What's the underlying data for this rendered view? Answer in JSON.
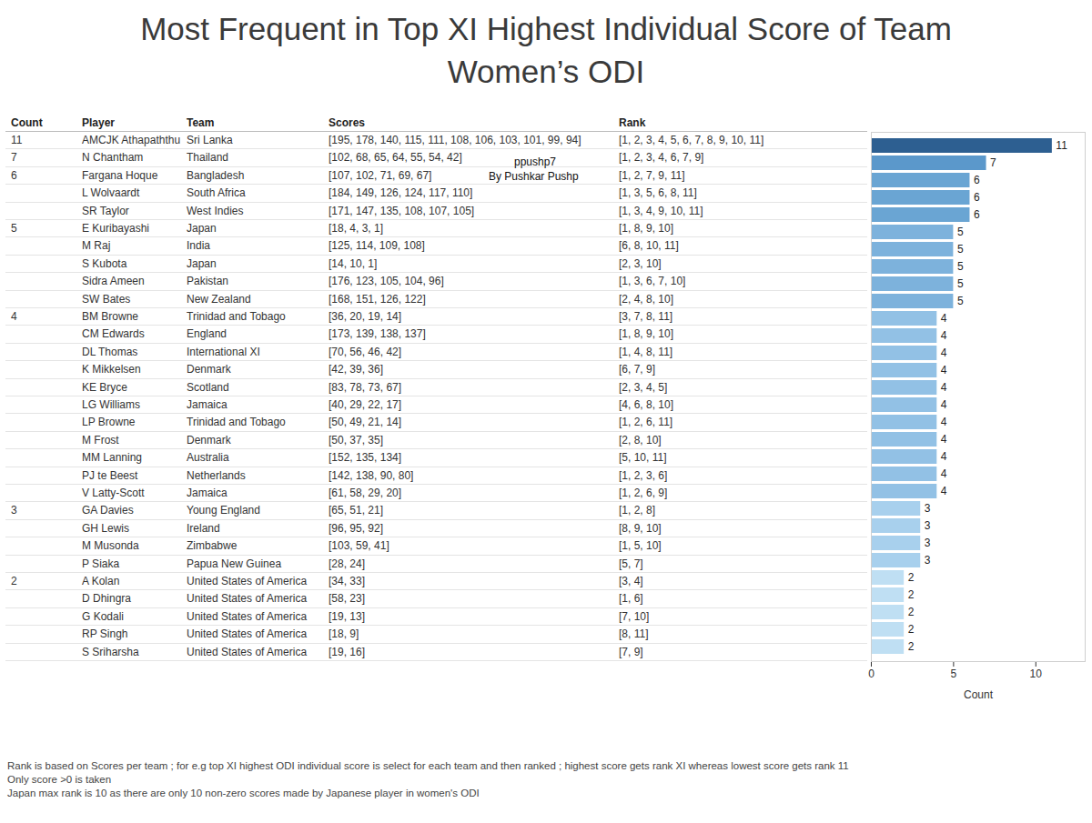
{
  "chart_data": {
    "type": "bar",
    "orientation": "horizontal",
    "title": "Most Frequent in Top XI Highest Individual Score of Team\nWomen’s ODI",
    "columns": [
      "Count",
      "Player",
      "Team",
      "Scores",
      "Rank"
    ],
    "x_label": "Count",
    "categories": [
      "AMCJK Athapaththu",
      "N Chantham",
      "Fargana Hoque",
      "L Wolvaardt",
      "SR Taylor",
      "E Kuribayashi",
      "M Raj",
      "S Kubota",
      "Sidra Ameen",
      "SW Bates",
      "BM Browne",
      "CM Edwards",
      "DL Thomas",
      "K Mikkelsen",
      "KE Bryce",
      "LG Williams",
      "LP Browne",
      "M Frost",
      "MM Lanning",
      "PJ te Beest",
      "V Latty-Scott",
      "GA Davies",
      "GH Lewis",
      "M Musonda",
      "P Siaka",
      "A Kolan",
      "D Dhingra",
      "G Kodali",
      "RP Singh",
      "S Sriharsha"
    ],
    "values": [
      11,
      7,
      6,
      6,
      6,
      5,
      5,
      5,
      5,
      5,
      4,
      4,
      4,
      4,
      4,
      4,
      4,
      4,
      4,
      4,
      4,
      3,
      3,
      3,
      3,
      2,
      2,
      2,
      2,
      2
    ],
    "teams": [
      "Sri Lanka",
      "Thailand",
      "Bangladesh",
      "South Africa",
      "West Indies",
      "Japan",
      "India",
      "Japan",
      "Pakistan",
      "New Zealand",
      "Trinidad and Tobago",
      "England",
      "International XI",
      "Denmark",
      "Scotland",
      "Jamaica",
      "Trinidad and Tobago",
      "Denmark",
      "Australia",
      "Netherlands",
      "Jamaica",
      "Young England",
      "Ireland",
      "Zimbabwe",
      "Papua New Guinea",
      "United States of America",
      "United States of America",
      "United States of America",
      "United States of America",
      "United States of America"
    ],
    "scores": [
      "[195, 178, 140, 115, 111, 108, 106, 103, 101, 99, 94]",
      "[102, 68, 65, 64, 55, 54, 42]",
      "[107, 102, 71, 69, 67]",
      "[184, 149, 126, 124, 117, 110]",
      "[171, 147, 135, 108, 107, 105]",
      "[18, 4, 3, 1]",
      "[125, 114, 109, 108]",
      "[14, 10, 1]",
      "[176, 123, 105, 104, 96]",
      "[168, 151, 126, 122]",
      "[36, 20, 19, 14]",
      "[173, 139, 138, 137]",
      "[70, 56, 46, 42]",
      "[42, 39, 36]",
      "[83, 78, 73, 67]",
      "[40, 29, 22, 17]",
      "[50, 49, 21, 14]",
      "[50, 37, 35]",
      "[152, 135, 134]",
      "[142, 138, 90, 80]",
      "[61, 58, 29, 20]",
      "[65, 51, 21]",
      "[96, 95, 92]",
      "[103, 59, 41]",
      "[28, 24]",
      "[34, 33]",
      "[58, 23]",
      "[19, 13]",
      "[18, 9]",
      "[19, 16]"
    ],
    "ranks": [
      "[1, 2, 3, 4, 5, 6, 7, 8, 9, 10, 11]",
      "[1, 2, 3, 4, 6, 7, 9]",
      "[1, 2, 7, 9, 11]",
      "[1, 3, 5, 6, 8, 11]",
      "[1, 3, 4, 9, 10, 11]",
      "[1, 8, 9, 10]",
      "[6, 8, 10, 11]",
      "[2, 3, 10]",
      "[1, 3, 6, 7, 10]",
      "[2, 4, 8, 10]",
      "[3, 7, 8, 11]",
      "[1, 8, 9, 10]",
      "[1, 4, 8, 11]",
      "[6, 7, 9]",
      "[2, 3, 4, 5]",
      "[4, 6, 8, 10]",
      "[1, 2, 6, 11]",
      "[2, 8, 10]",
      "[5, 10, 11]",
      "[1, 2, 3, 6]",
      "[1, 2, 6, 9]",
      "[1, 2, 8]",
      "[8, 9, 10]",
      "[1, 5, 10]",
      "[5, 7]",
      "[3, 4]",
      "[1, 6]",
      "[7, 10]",
      "[8, 11]",
      "[7, 9]"
    ],
    "colors": [
      "#2d5f91",
      "#5b98cb",
      "#6aa5d3",
      "#6aa5d3",
      "#6aa5d3",
      "#7db2dc",
      "#7db2dc",
      "#7db2dc",
      "#7db2dc",
      "#7db2dc",
      "#92c1e5",
      "#92c1e5",
      "#92c1e5",
      "#92c1e5",
      "#92c1e5",
      "#92c1e5",
      "#92c1e5",
      "#92c1e5",
      "#92c1e5",
      "#92c1e5",
      "#92c1e5",
      "#a8d0ed",
      "#a8d0ed",
      "#a8d0ed",
      "#a8d0ed",
      "#bfdff3",
      "#bfdff3",
      "#bfdff3",
      "#bfdff3",
      "#bfdff3"
    ],
    "xlim": [
      0,
      13
    ],
    "xticks": [
      0,
      5,
      10
    ],
    "data_labels": true,
    "tick_labels": "x",
    "annotations": [
      "ppushp7",
      "By Pushkar Pushp"
    ],
    "notes": [
      "Rank is based on Scores per team ; for e.g top XI highest ODI individual score is select for each team and then ranked ; highest score gets rank XI whereas lowest score gets rank 11",
      "Only score >0 is taken",
      "Japan max rank is 10 as there are only 10 non-zero scores made by Japanese player in women's ODI"
    ]
  }
}
